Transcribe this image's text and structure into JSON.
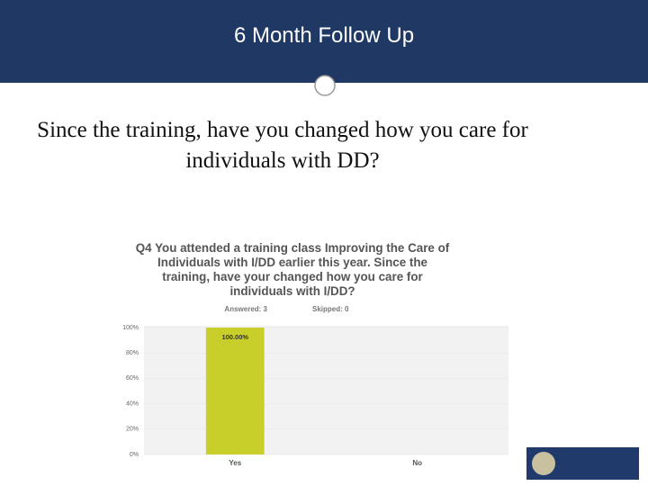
{
  "header": {
    "title": "6 Month Follow Up"
  },
  "question": "Since the training, have you changed how you care for individuals with DD?",
  "chart_data": {
    "type": "bar",
    "title": "Q4 You attended a training class Improving the Care of Individuals with I/DD earlier this year. Since the training, have your changed how you care for individuals with I/DD?",
    "answered": "Answered: 3",
    "skipped": "Skipped: 0",
    "categories": [
      "Yes",
      "No"
    ],
    "values": [
      100,
      0
    ],
    "value_labels": [
      "100.00%",
      null
    ],
    "color": "#c8cf2a",
    "ylim": [
      0,
      100
    ],
    "yticks": [
      {
        "value": 0,
        "label": "0%"
      },
      {
        "value": 20,
        "label": "20%"
      },
      {
        "value": 40,
        "label": "40%"
      },
      {
        "value": 60,
        "label": "60%"
      },
      {
        "value": 80,
        "label": "80%"
      },
      {
        "value": 100,
        "label": "100%"
      }
    ],
    "grid": true
  }
}
